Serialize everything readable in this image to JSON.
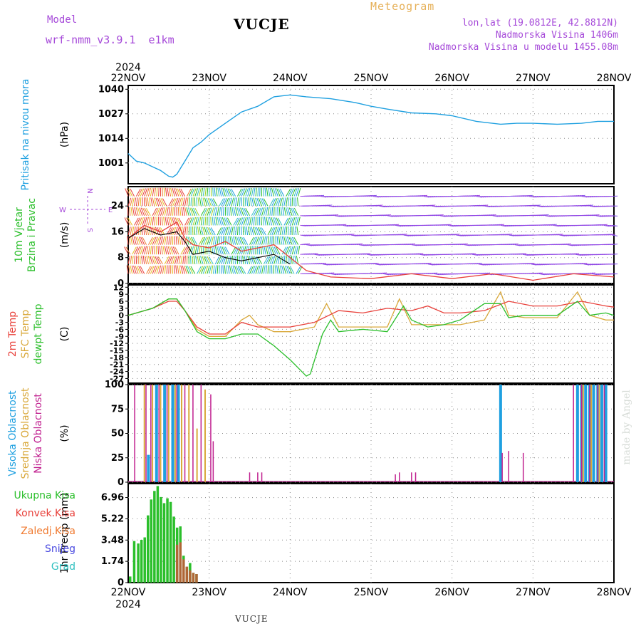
{
  "header": {
    "model_label": "Model",
    "model_name": "wrf-nmm_v3.9.1  e1km",
    "station": "VUCJE",
    "meteogram_label": "Meteogram",
    "coords": "lon,lat (19.0812E, 42.8812N)",
    "elevation": "Nadmorska Visina 1406m",
    "model_elevation": "Nadmorska Visina u modelu 1455.08m"
  },
  "footer": {
    "station": "VUCJE"
  },
  "watermark": "made by Angel",
  "colors": {
    "pressure": "#1fa0e0",
    "temp2m": "#e8403a",
    "sfc_temp": "#d9a83a",
    "dewpoint": "#2bbf2b",
    "high_cloud": "#1fa0e0",
    "mid_cloud": "#d9a83a",
    "low_cloud": "#c0208f",
    "total_precip": "#2bbf2b",
    "conv_precip": "#e8403a"
  },
  "chart_data": [
    {
      "type": "line",
      "panel": "pressure",
      "xlabel_dates": [
        "22NOV",
        "23NOV",
        "24NOV",
        "25NOV",
        "26NOV",
        "27NOV",
        "28NOV"
      ],
      "year_label": "2024",
      "ylabel": "(hPa)",
      "side_label": [
        "Pritisak na nivou mora"
      ],
      "yticks": [
        1001,
        1014,
        1027,
        1040
      ],
      "ylim": [
        990,
        1042
      ],
      "series": [
        {
          "x": [
            0,
            0.1,
            0.2,
            0.3,
            0.4,
            0.5,
            0.55,
            0.6,
            0.7,
            0.8,
            0.9,
            1.0,
            1.2,
            1.4,
            1.6,
            1.8,
            2.0,
            2.2,
            2.5,
            2.8,
            3.0,
            3.2,
            3.5,
            3.8,
            4.0,
            4.3,
            4.6,
            4.8,
            5.0,
            5.3,
            5.6,
            5.8,
            6.0
          ],
          "values": [
            1006,
            1002,
            1001,
            999,
            997,
            994,
            993.5,
            995,
            1002,
            1009,
            1012,
            1016,
            1022,
            1028,
            1031,
            1036,
            1037,
            1036,
            1035,
            1033,
            1031,
            1029.5,
            1027.5,
            1027,
            1026,
            1023,
            1021.5,
            1022,
            1022,
            1021.5,
            1022,
            1023,
            1023
          ]
        }
      ]
    },
    {
      "type": "line",
      "panel": "wind",
      "ylabel": "(m/s)",
      "side_label": [
        "10m Vjetar",
        "Brzina i Pravac"
      ],
      "compass": [
        "N",
        "W",
        "E",
        "S"
      ],
      "yticks": [
        0,
        8,
        16,
        24
      ],
      "ylim": [
        0,
        30
      ],
      "series": [
        {
          "name": "gust",
          "x": [
            0,
            0.2,
            0.4,
            0.6,
            0.7,
            0.8,
            1.0,
            1.2,
            1.4,
            1.6,
            1.8,
            2.0,
            2.2,
            2.5,
            3.0,
            3.5,
            4.0,
            4.5,
            5.0,
            5.5,
            6.0
          ],
          "values": [
            14,
            18,
            16,
            19,
            14,
            12,
            11,
            13,
            10,
            11,
            12,
            8,
            4,
            2,
            1.5,
            3,
            1.5,
            3,
            1,
            3,
            2
          ]
        },
        {
          "name": "speed",
          "x": [
            0,
            0.2,
            0.4,
            0.6,
            0.7,
            0.8,
            1.0,
            1.2,
            1.4,
            1.6,
            1.8,
            2.0
          ],
          "values": [
            14,
            17,
            15,
            16,
            13,
            9,
            10,
            8,
            7,
            8,
            9,
            6
          ]
        }
      ]
    },
    {
      "type": "line",
      "panel": "temperature",
      "ylabel": "(C)",
      "side_label": [
        "2m Temp",
        "SFC Temp",
        "dewpt Temp"
      ],
      "yticks": [
        12,
        9,
        6,
        3,
        0,
        -3,
        -6,
        -9,
        -12,
        -15,
        -18,
        -21,
        -24,
        -27
      ],
      "ylim": [
        -29,
        13
      ],
      "series": [
        {
          "name": "2m Temp",
          "x": [
            0,
            0.3,
            0.5,
            0.6,
            0.7,
            0.85,
            1.0,
            1.2,
            1.4,
            1.6,
            1.8,
            2.0,
            2.3,
            2.6,
            2.9,
            3.2,
            3.5,
            3.7,
            3.9,
            4.1,
            4.4,
            4.7,
            5.0,
            5.3,
            5.6,
            5.9,
            6.0
          ],
          "values": [
            0,
            3,
            6,
            6,
            2,
            -5,
            -8,
            -8,
            -3,
            -5,
            -5,
            -5,
            -3,
            2,
            1,
            3,
            2,
            4,
            1,
            1,
            2,
            6,
            4,
            4,
            6,
            4,
            3.5
          ]
        },
        {
          "name": "SFC Temp",
          "x": [
            0,
            0.3,
            0.5,
            0.6,
            0.7,
            0.85,
            1.0,
            1.2,
            1.4,
            1.5,
            1.6,
            1.8,
            2.0,
            2.3,
            2.45,
            2.6,
            2.9,
            3.2,
            3.35,
            3.5,
            3.7,
            3.9,
            4.1,
            4.4,
            4.6,
            4.7,
            4.9,
            5.0,
            5.3,
            5.55,
            5.7,
            5.9,
            6.0
          ],
          "values": [
            0,
            3,
            7,
            7,
            2,
            -6,
            -9,
            -9,
            -2,
            0,
            -4,
            -7,
            -7,
            -5,
            5,
            -5,
            -5,
            -5,
            7,
            -4,
            -4,
            -4,
            -4,
            -2,
            10,
            0,
            -1,
            -1,
            -1,
            10,
            0,
            -2,
            -2
          ]
        },
        {
          "name": "dewpt Temp",
          "x": [
            0,
            0.3,
            0.5,
            0.6,
            0.7,
            0.85,
            1.0,
            1.2,
            1.4,
            1.6,
            1.8,
            2.0,
            2.2,
            2.25,
            2.4,
            2.5,
            2.6,
            2.9,
            3.2,
            3.4,
            3.5,
            3.7,
            3.9,
            4.1,
            4.4,
            4.6,
            4.7,
            4.9,
            5.0,
            5.3,
            5.55,
            5.7,
            5.9,
            6.0
          ],
          "values": [
            0,
            3,
            7,
            7,
            2,
            -7,
            -10,
            -10,
            -8,
            -8,
            -13,
            -19,
            -26,
            -25,
            -8,
            -2,
            -7,
            -6,
            -7,
            4,
            -2,
            -5,
            -4,
            -2,
            5,
            5,
            -1,
            0,
            0,
            0,
            6,
            0,
            1,
            0
          ]
        }
      ]
    },
    {
      "type": "bar",
      "panel": "cloud",
      "ylabel": "(%)",
      "side_label": [
        "Visoka Oblacnost",
        "Srednja Oblacnost",
        "Niska Oblacnost"
      ],
      "yticks": [
        0,
        25,
        50,
        75,
        100
      ],
      "ylim": [
        0,
        100
      ],
      "series": [
        {
          "name": "Visoka Oblacnost",
          "x": [
            0.25,
            0.35,
            0.45,
            0.55,
            0.62,
            4.6,
            5.55,
            5.6,
            5.65,
            5.7,
            5.75,
            5.8,
            5.85,
            5.9
          ],
          "values": [
            28,
            100,
            100,
            100,
            100,
            100,
            100,
            100,
            100,
            100,
            100,
            100,
            100,
            100
          ]
        },
        {
          "name": "Srednja Oblacnost",
          "x": [
            0.2,
            0.3,
            0.4,
            0.5,
            0.58,
            0.66,
            0.75,
            0.85,
            0.95,
            5.62,
            5.72,
            5.82
          ],
          "values": [
            100,
            100,
            100,
            100,
            100,
            100,
            100,
            55,
            95,
            100,
            100,
            100
          ]
        },
        {
          "name": "Niska Oblacnost",
          "x": [
            0.08,
            0.22,
            0.28,
            0.38,
            0.48,
            0.6,
            0.7,
            0.8,
            0.9,
            1.02,
            1.05,
            1.5,
            1.6,
            1.65,
            3.3,
            3.35,
            3.5,
            3.55,
            4.62,
            4.7,
            4.88,
            5.5,
            5.6,
            5.7,
            5.8,
            5.88
          ],
          "values": [
            100,
            100,
            100,
            100,
            100,
            100,
            100,
            100,
            100,
            90,
            42,
            10,
            10,
            10,
            8,
            10,
            10,
            10,
            30,
            32,
            30,
            100,
            100,
            100,
            100,
            100
          ]
        }
      ]
    },
    {
      "type": "bar",
      "panel": "precip",
      "ylabel": "1hr Precip (mm)",
      "side_label": [
        "Ukupna Kisa",
        "Konvek.Kisa",
        "Zaledj.Kisa",
        "Snijeg",
        "Grad"
      ],
      "yticks": [
        0,
        1.74,
        3.48,
        5.22,
        6.96
      ],
      "ylim": [
        0,
        8.1
      ],
      "series": [
        {
          "name": "Ukupna Kisa",
          "x": [
            0.0,
            0.05,
            0.1,
            0.14,
            0.18,
            0.22,
            0.26,
            0.3,
            0.34,
            0.38,
            0.42,
            0.46,
            0.5,
            0.54,
            0.58,
            0.62,
            0.66,
            0.7,
            0.74,
            0.78,
            0.82
          ],
          "values": [
            0.5,
            3.4,
            3.2,
            3.5,
            3.7,
            5.5,
            6.8,
            7.5,
            7.9,
            7.0,
            6.5,
            6.9,
            6.6,
            5.4,
            4.5,
            4.6,
            2.2,
            1.3,
            1.6,
            0.8,
            0.7
          ]
        },
        {
          "name": "Konvek.Kisa",
          "x": [
            0.58,
            0.62,
            0.66,
            0.7,
            0.74,
            0.78,
            0.82
          ],
          "values": [
            3.1,
            3.3,
            1.9,
            1.3,
            1.0,
            0.8,
            0.7
          ]
        }
      ]
    }
  ]
}
